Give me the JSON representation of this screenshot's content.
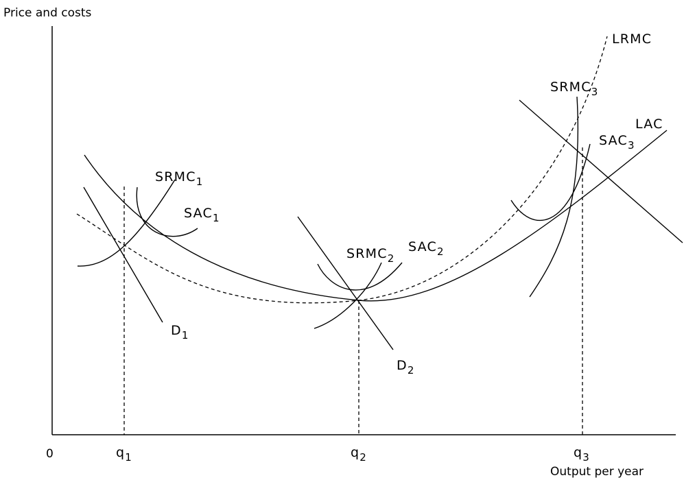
{
  "axes": {
    "y_title": "Price and costs",
    "x_title": "Output per year",
    "origin": "0"
  },
  "ticks": [
    {
      "base": "q",
      "sub": "1"
    },
    {
      "base": "q",
      "sub": "2"
    },
    {
      "base": "q",
      "sub": "3"
    }
  ],
  "curve_labels": {
    "lrmc": {
      "base": "LRMC",
      "sub": ""
    },
    "lac": {
      "base": "LAC",
      "sub": ""
    },
    "srmc1": {
      "base": "SRMC",
      "sub": "1"
    },
    "sac1": {
      "base": "SAC",
      "sub": "1"
    },
    "d1": {
      "base": "D",
      "sub": "1"
    },
    "srmc2": {
      "base": "SRMC",
      "sub": "2"
    },
    "sac2": {
      "base": "SAC",
      "sub": "2"
    },
    "d2": {
      "base": "D",
      "sub": "2"
    },
    "srmc3": {
      "base": "SRMC",
      "sub": "3"
    },
    "sac3": {
      "base": "SAC",
      "sub": "3"
    }
  }
}
